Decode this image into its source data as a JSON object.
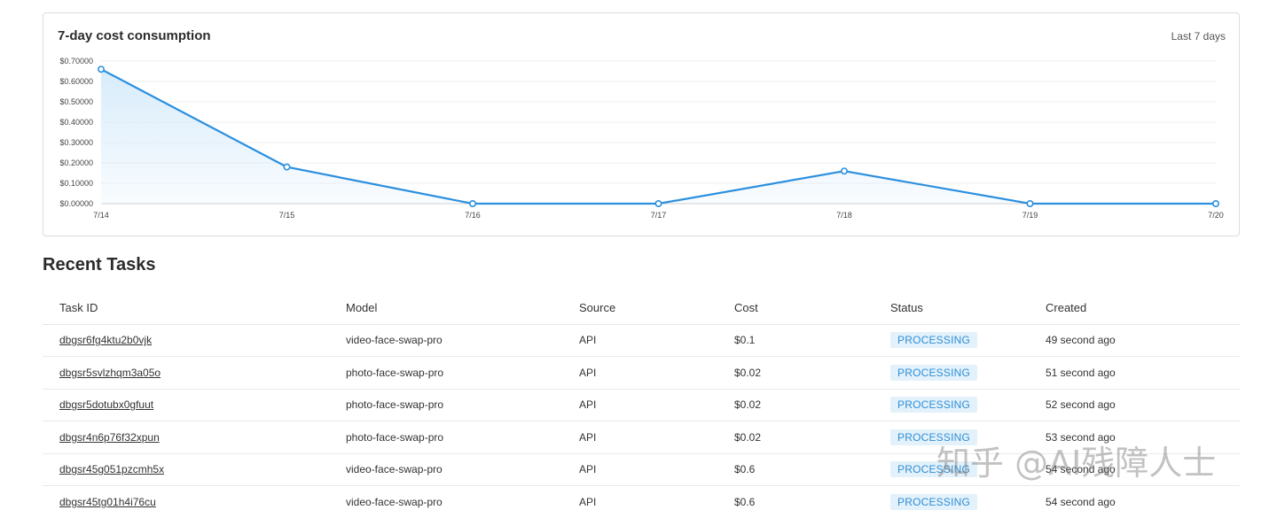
{
  "chart": {
    "title": "7-day cost consumption",
    "range_label": "Last 7 days"
  },
  "chart_data": {
    "type": "area",
    "categories": [
      "7/14",
      "7/15",
      "7/16",
      "7/17",
      "7/18",
      "7/19",
      "7/20"
    ],
    "series": [
      {
        "values": [
          0.66,
          0.18,
          0.0,
          0.0,
          0.16,
          0.0,
          0.0
        ]
      }
    ],
    "yticks": [
      "$0.00000",
      "$0.10000",
      "$0.20000",
      "$0.30000",
      "$0.40000",
      "$0.50000",
      "$0.60000",
      "$0.70000"
    ],
    "ylim": [
      0,
      0.7
    ],
    "grid": true,
    "colors": {
      "line": "#2b8fde",
      "fill": "#d6ebfb"
    }
  },
  "tasks": {
    "title": "Recent Tasks",
    "columns": [
      "Task ID",
      "Model",
      "Source",
      "Cost",
      "Status",
      "Created"
    ],
    "rows": [
      {
        "id": "dbgsr6fg4ktu2b0vjk",
        "model": "video-face-swap-pro",
        "source": "API",
        "cost": "$0.1",
        "status": "PROCESSING",
        "created": "49 second ago"
      },
      {
        "id": "dbgsr5svlzhqm3a05o",
        "model": "photo-face-swap-pro",
        "source": "API",
        "cost": "$0.02",
        "status": "PROCESSING",
        "created": "51 second ago"
      },
      {
        "id": "dbgsr5dotubx0gfuut",
        "model": "photo-face-swap-pro",
        "source": "API",
        "cost": "$0.02",
        "status": "PROCESSING",
        "created": "52 second ago"
      },
      {
        "id": "dbgsr4n6p76f32xpun",
        "model": "photo-face-swap-pro",
        "source": "API",
        "cost": "$0.02",
        "status": "PROCESSING",
        "created": "53 second ago"
      },
      {
        "id": "dbgsr45g051pzcmh5x",
        "model": "video-face-swap-pro",
        "source": "API",
        "cost": "$0.6",
        "status": "PROCESSING",
        "created": "54 second ago"
      },
      {
        "id": "dbgsr45tg01h4i76cu",
        "model": "video-face-swap-pro",
        "source": "API",
        "cost": "$0.6",
        "status": "PROCESSING",
        "created": "54 second ago"
      }
    ]
  },
  "watermark": "知乎 @AI残障人士",
  "colors": {
    "badge_bg": "#e3f1fb",
    "badge_text": "#2f8fd5",
    "border": "#dcdcdc"
  }
}
